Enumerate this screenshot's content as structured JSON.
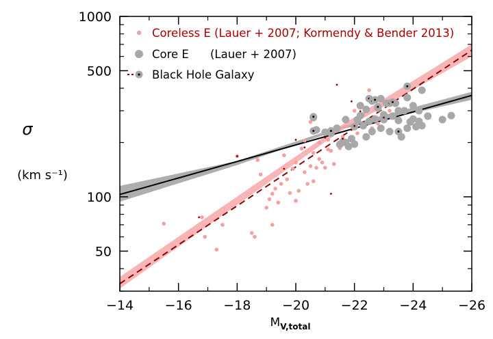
{
  "chart_data": {
    "type": "scatter",
    "title": "",
    "xlabel_main": "M",
    "xlabel_sub": "V,total",
    "ylabel_symbol": "σ",
    "ylabel_units": "(km s⁻¹)",
    "xlim": [
      -14,
      -26
    ],
    "ylim": [
      30,
      1000
    ],
    "yscale": "log",
    "x_ticks": [
      -14,
      -16,
      -18,
      -20,
      -22,
      -24,
      -26
    ],
    "x_tick_labels": [
      "−14",
      "−16",
      "−18",
      "−20",
      "−22",
      "−24",
      "−26"
    ],
    "y_ticks": [
      50,
      100,
      500,
      1000
    ],
    "y_tick_labels": [
      "50",
      "100",
      "500",
      "1000"
    ],
    "grid": false,
    "legend_position": "top-left",
    "legend": [
      {
        "label": "Coreless E (Lauer + 2007; Kormendy & Bender 2013)",
        "color": "#aa0000",
        "marker": "small-pink-dot"
      },
      {
        "label": "Core E",
        "label2": "(Lauer + 2007)",
        "color": "#000000",
        "marker": "large-gray-dot"
      },
      {
        "label": "Black Hole Galaxy",
        "color": "#000000",
        "marker": "gray-dot-with-black-center"
      }
    ],
    "colors": {
      "coreless": "#f4a0a0",
      "coreless_text": "#aa0000",
      "core": "#a8a8a8",
      "core_band": "#a0a0a0",
      "coreless_band": "#f5a3a3",
      "coreless_fit": "#8b0000",
      "core_fit": "#000000",
      "bh_center": "#000000",
      "bh_only": "#8b0000"
    },
    "fits": [
      {
        "name": "Core E fit",
        "style": "solid",
        "x": [
          -14,
          -26
        ],
        "y": [
          103,
          365
        ]
      },
      {
        "name": "Coreless E fit",
        "style": "dashed",
        "x": [
          -14,
          -26
        ],
        "y": [
          33,
          650
        ]
      }
    ],
    "bands": [
      {
        "name": "Core E uncertainty",
        "x": [
          -14,
          -18,
          -21.5,
          -26
        ],
        "y_low": [
          94,
          150,
          236,
          345
        ],
        "y_high": [
          115,
          158,
          244,
          382
        ]
      },
      {
        "name": "Coreless E uncertainty",
        "x": [
          -14,
          -21.5,
          -26
        ],
        "y_low": [
          31,
          230,
          600
        ],
        "y_high": [
          36,
          246,
          700
        ]
      }
    ],
    "coreless_points": [
      {
        "x": -15.5,
        "y": 71
      },
      {
        "x": -16.8,
        "y": 77
      },
      {
        "x": -16.9,
        "y": 60
      },
      {
        "x": -17.3,
        "y": 51
      },
      {
        "x": -17.5,
        "y": 70
      },
      {
        "x": -18.0,
        "y": 168
      },
      {
        "x": -18.5,
        "y": 63
      },
      {
        "x": -18.6,
        "y": 60
      },
      {
        "x": -18.7,
        "y": 160
      },
      {
        "x": -18.8,
        "y": 133
      },
      {
        "x": -19.0,
        "y": 87
      },
      {
        "x": -19.1,
        "y": 97
      },
      {
        "x": -19.2,
        "y": 104
      },
      {
        "x": -19.2,
        "y": 70
      },
      {
        "x": -19.3,
        "y": 111
      },
      {
        "x": -19.4,
        "y": 93
      },
      {
        "x": -19.5,
        "y": 118
      },
      {
        "x": -19.6,
        "y": 170
      },
      {
        "x": -19.7,
        "y": 125
      },
      {
        "x": -19.8,
        "y": 105
      },
      {
        "x": -19.9,
        "y": 143
      },
      {
        "x": -20.0,
        "y": 95
      },
      {
        "x": -20.0,
        "y": 155
      },
      {
        "x": -20.1,
        "y": 108
      },
      {
        "x": -20.2,
        "y": 185
      },
      {
        "x": -20.3,
        "y": 137
      },
      {
        "x": -20.3,
        "y": 205
      },
      {
        "x": -20.4,
        "y": 118
      },
      {
        "x": -20.5,
        "y": 148
      },
      {
        "x": -20.5,
        "y": 260
      },
      {
        "x": -20.6,
        "y": 175
      },
      {
        "x": -20.6,
        "y": 122
      },
      {
        "x": -20.7,
        "y": 145
      },
      {
        "x": -20.8,
        "y": 162
      },
      {
        "x": -20.8,
        "y": 200
      },
      {
        "x": -20.9,
        "y": 155
      },
      {
        "x": -21.0,
        "y": 228
      },
      {
        "x": -21.0,
        "y": 145
      },
      {
        "x": -21.1,
        "y": 183
      },
      {
        "x": -21.1,
        "y": 207
      },
      {
        "x": -21.2,
        "y": 180
      },
      {
        "x": -21.3,
        "y": 152
      },
      {
        "x": -21.4,
        "y": 245
      },
      {
        "x": -21.5,
        "y": 186
      },
      {
        "x": -21.6,
        "y": 215
      },
      {
        "x": -21.8,
        "y": 186
      },
      {
        "x": -22.0,
        "y": 300
      },
      {
        "x": -22.1,
        "y": 225
      },
      {
        "x": -22.3,
        "y": 287
      },
      {
        "x": -22.6,
        "y": 240
      },
      {
        "x": -22.8,
        "y": 255
      },
      {
        "x": -23.0,
        "y": 330
      },
      {
        "x": -23.2,
        "y": 300
      },
      {
        "x": -22.5,
        "y": 390
      },
      {
        "x": -22.7,
        "y": 345
      },
      {
        "x": -22.9,
        "y": 235
      }
    ],
    "core_points": [
      {
        "x": -20.6,
        "y": 275
      },
      {
        "x": -20.7,
        "y": 235
      },
      {
        "x": -21.0,
        "y": 228
      },
      {
        "x": -21.2,
        "y": 225
      },
      {
        "x": -21.4,
        "y": 240
      },
      {
        "x": -21.5,
        "y": 195
      },
      {
        "x": -21.6,
        "y": 202
      },
      {
        "x": -21.7,
        "y": 268
      },
      {
        "x": -21.7,
        "y": 200
      },
      {
        "x": -21.8,
        "y": 190
      },
      {
        "x": -21.9,
        "y": 210
      },
      {
        "x": -22.0,
        "y": 196
      },
      {
        "x": -22.0,
        "y": 245
      },
      {
        "x": -22.1,
        "y": 267
      },
      {
        "x": -22.2,
        "y": 282
      },
      {
        "x": -22.3,
        "y": 248
      },
      {
        "x": -22.4,
        "y": 305
      },
      {
        "x": -22.5,
        "y": 262
      },
      {
        "x": -22.6,
        "y": 340
      },
      {
        "x": -22.7,
        "y": 270
      },
      {
        "x": -22.8,
        "y": 310
      },
      {
        "x": -22.9,
        "y": 350
      },
      {
        "x": -23.0,
        "y": 268
      },
      {
        "x": -23.1,
        "y": 330
      },
      {
        "x": -23.2,
        "y": 230
      },
      {
        "x": -23.3,
        "y": 280
      },
      {
        "x": -23.4,
        "y": 330
      },
      {
        "x": -23.5,
        "y": 265
      },
      {
        "x": -23.6,
        "y": 215
      },
      {
        "x": -23.7,
        "y": 300
      },
      {
        "x": -23.8,
        "y": 355
      },
      {
        "x": -23.9,
        "y": 260
      },
      {
        "x": -24.0,
        "y": 320
      },
      {
        "x": -24.0,
        "y": 270
      },
      {
        "x": -24.1,
        "y": 245
      },
      {
        "x": -24.2,
        "y": 262
      },
      {
        "x": -24.3,
        "y": 248
      },
      {
        "x": -24.3,
        "y": 390
      },
      {
        "x": -24.5,
        "y": 280
      },
      {
        "x": -25.0,
        "y": 268
      },
      {
        "x": -25.3,
        "y": 282
      },
      {
        "x": -23.0,
        "y": 285
      },
      {
        "x": -22.9,
        "y": 240
      },
      {
        "x": -22.4,
        "y": 215
      },
      {
        "x": -22.6,
        "y": 230
      },
      {
        "x": -23.5,
        "y": 300
      },
      {
        "x": -23.8,
        "y": 240
      },
      {
        "x": -24.2,
        "y": 300
      },
      {
        "x": -22.2,
        "y": 320
      }
    ],
    "bh_galaxies": [
      {
        "x": -16.7,
        "y": 77,
        "type": "coreless"
      },
      {
        "x": -18.0,
        "y": 168,
        "type": "coreless"
      },
      {
        "x": -19.6,
        "y": 143,
        "type": "coreless"
      },
      {
        "x": -20.0,
        "y": 207,
        "type": "coreless"
      },
      {
        "x": -20.6,
        "y": 278,
        "type": "core"
      },
      {
        "x": -20.6,
        "y": 232,
        "type": "core"
      },
      {
        "x": -21.0,
        "y": 213,
        "type": "coreless"
      },
      {
        "x": -21.2,
        "y": 104,
        "type": "coreless"
      },
      {
        "x": -21.2,
        "y": 232,
        "type": "core"
      },
      {
        "x": -21.6,
        "y": 210,
        "type": "coreless"
      },
      {
        "x": -21.9,
        "y": 338,
        "type": "coreless"
      },
      {
        "x": -22.0,
        "y": 247,
        "type": "coreless"
      },
      {
        "x": -22.2,
        "y": 298,
        "type": "coreless"
      },
      {
        "x": -22.5,
        "y": 350,
        "type": "core"
      },
      {
        "x": -22.6,
        "y": 340,
        "type": "core"
      },
      {
        "x": -22.7,
        "y": 345,
        "type": "core"
      },
      {
        "x": -22.8,
        "y": 315,
        "type": "core"
      },
      {
        "x": -23.0,
        "y": 275,
        "type": "coreless"
      },
      {
        "x": -23.2,
        "y": 330,
        "type": "core"
      },
      {
        "x": -23.3,
        "y": 335,
        "type": "core"
      },
      {
        "x": -23.5,
        "y": 230,
        "type": "core"
      },
      {
        "x": -23.8,
        "y": 410,
        "type": "core"
      },
      {
        "x": -21.4,
        "y": 418,
        "type": "coreless"
      },
      {
        "x": -20.3,
        "y": 188,
        "type": "coreless"
      }
    ]
  }
}
